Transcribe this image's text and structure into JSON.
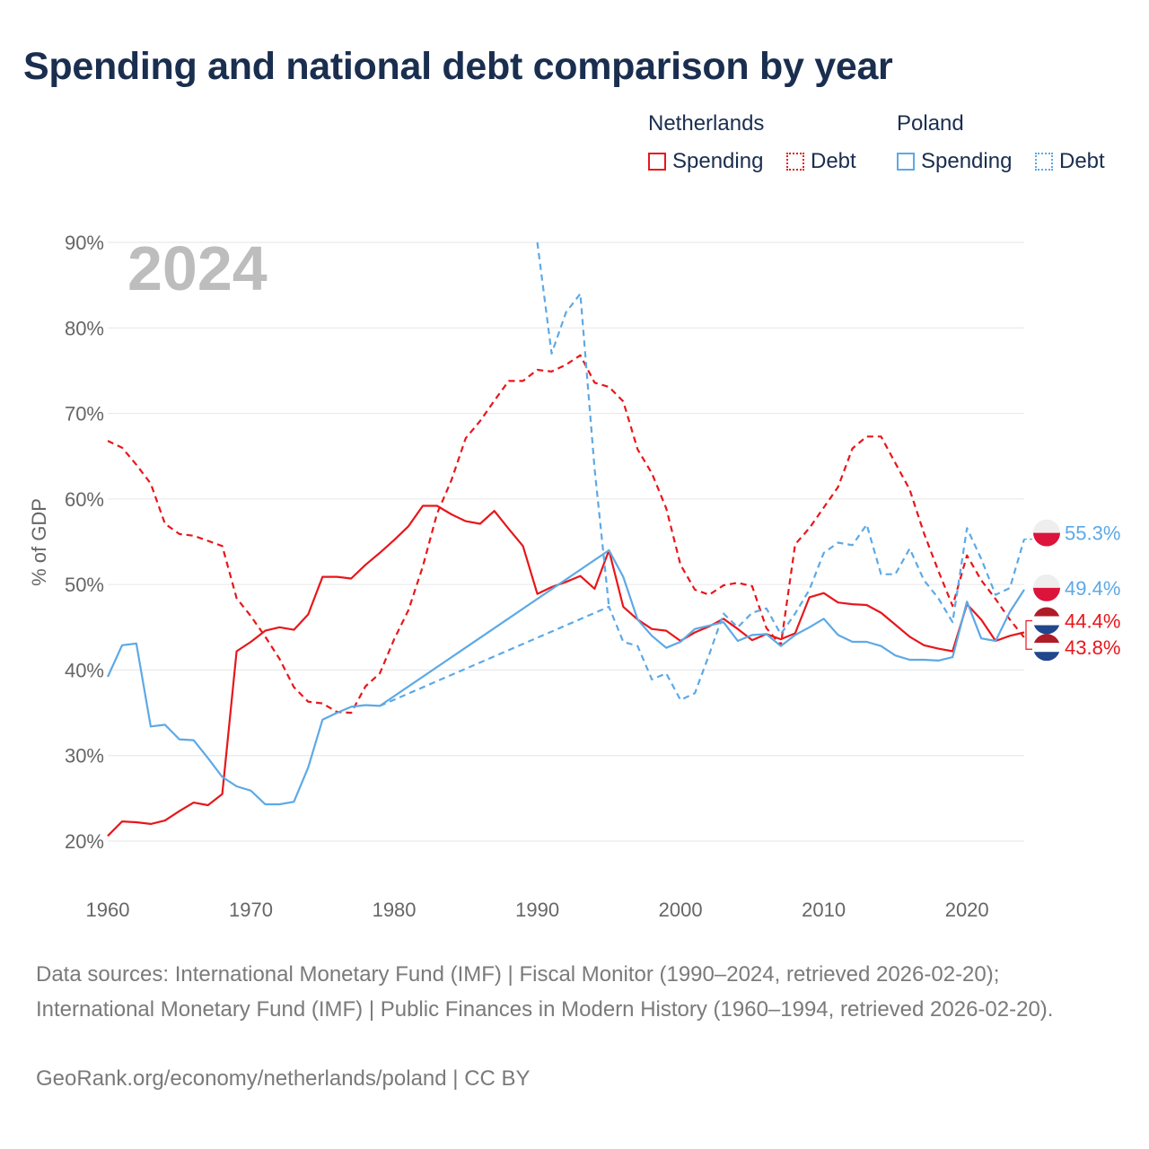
{
  "title": "Spending and national debt comparison by year",
  "legend": {
    "groups": [
      {
        "name": "Netherlands",
        "items": [
          {
            "label": "Spending",
            "style": "solid",
            "color": "#e8161b"
          },
          {
            "label": "Debt",
            "style": "dotted",
            "color": "#e8161b"
          }
        ]
      },
      {
        "name": "Poland",
        "items": [
          {
            "label": "Spending",
            "style": "solid",
            "color": "#5da9e6"
          },
          {
            "label": "Debt",
            "style": "dotted",
            "color": "#5da9e6"
          }
        ]
      }
    ]
  },
  "colors": {
    "netherlands": "#e8161b",
    "poland": "#5da9e6",
    "grid": "#e6e6e6",
    "title": "#1a2e4f"
  },
  "chart_data": {
    "type": "line",
    "year_label": "2024",
    "ylabel": "% of GDP",
    "xlabel": "",
    "xlim": [
      1960,
      2024
    ],
    "ylim": [
      20,
      90
    ],
    "x_ticks": [
      {
        "value": 1960,
        "label": "1960"
      },
      {
        "value": 1970,
        "label": "1970"
      },
      {
        "value": 1980,
        "label": "1980"
      },
      {
        "value": 1990,
        "label": "1990"
      },
      {
        "value": 2000,
        "label": "2000"
      },
      {
        "value": 2010,
        "label": "2010"
      },
      {
        "value": 2020,
        "label": "2020"
      }
    ],
    "y_ticks": [
      {
        "value": 20,
        "label": "20%"
      },
      {
        "value": 30,
        "label": "30%"
      },
      {
        "value": 40,
        "label": "40%"
      },
      {
        "value": 50,
        "label": "50%"
      },
      {
        "value": 60,
        "label": "60%"
      },
      {
        "value": 70,
        "label": "70%"
      },
      {
        "value": 80,
        "label": "80%"
      },
      {
        "value": 90,
        "label": "90%"
      }
    ],
    "series": [
      {
        "name": "Netherlands Debt",
        "country": "Netherlands",
        "measure": "Debt",
        "color": "#e8161b",
        "dashed": true,
        "x": [
          1960,
          1961,
          1962,
          1963,
          1964,
          1965,
          1966,
          1967,
          1968,
          1969,
          1970,
          1971,
          1972,
          1973,
          1974,
          1975,
          1976,
          1977,
          1978,
          1979,
          1980,
          1981,
          1982,
          1983,
          1984,
          1985,
          1986,
          1987,
          1988,
          1989,
          1990,
          1991,
          1992,
          1993,
          1994,
          1995,
          1996,
          1997,
          1998,
          1999,
          2000,
          2001,
          2002,
          2003,
          2004,
          2005,
          2006,
          2007,
          2008,
          2009,
          2010,
          2011,
          2012,
          2013,
          2014,
          2015,
          2016,
          2017,
          2018,
          2019,
          2020,
          2021,
          2022,
          2023,
          2024
        ],
        "y": [
          66.8,
          66.0,
          64.0,
          61.8,
          57.1,
          55.9,
          55.7,
          55.1,
          54.5,
          48.4,
          46.3,
          43.9,
          41.3,
          38.0,
          36.3,
          36.1,
          35.1,
          35.0,
          38.1,
          39.6,
          43.6,
          47.0,
          52.1,
          58.3,
          62.2,
          67.1,
          69.1,
          71.5,
          73.8,
          73.8,
          75.1,
          74.9,
          75.7,
          76.8,
          73.6,
          73.1,
          71.4,
          65.8,
          63.0,
          58.9,
          52.3,
          49.4,
          48.8,
          49.9,
          50.2,
          49.8,
          44.9,
          42.9,
          54.7,
          56.6,
          59.0,
          61.4,
          65.9,
          67.3,
          67.3,
          64.2,
          61.1,
          56.0,
          51.6,
          47.5,
          53.4,
          50.5,
          48.3,
          45.9,
          43.8
        ]
      },
      {
        "name": "Netherlands Spending",
        "country": "Netherlands",
        "measure": "Spending",
        "color": "#e8161b",
        "dashed": false,
        "x": [
          1960,
          1961,
          1962,
          1963,
          1964,
          1965,
          1966,
          1967,
          1968,
          1969,
          1970,
          1971,
          1972,
          1973,
          1974,
          1975,
          1976,
          1977,
          1978,
          1979,
          1980,
          1981,
          1982,
          1983,
          1984,
          1985,
          1986,
          1987,
          1988,
          1989,
          1990,
          1991,
          1992,
          1993,
          1994,
          1995,
          1996,
          1997,
          1998,
          1999,
          2000,
          2001,
          2002,
          2003,
          2004,
          2005,
          2006,
          2007,
          2008,
          2009,
          2010,
          2011,
          2012,
          2013,
          2014,
          2015,
          2016,
          2017,
          2018,
          2019,
          2020,
          2021,
          2022,
          2023,
          2024
        ],
        "y": [
          20.6,
          22.3,
          22.2,
          22.0,
          22.4,
          23.5,
          24.5,
          24.2,
          25.5,
          42.2,
          43.3,
          44.6,
          45.0,
          44.7,
          46.5,
          50.9,
          50.9,
          50.7,
          52.3,
          53.7,
          55.2,
          56.8,
          59.2,
          59.2,
          58.2,
          57.4,
          57.1,
          58.6,
          56.5,
          54.5,
          48.9,
          49.7,
          50.3,
          51.0,
          49.5,
          54.0,
          47.4,
          45.9,
          44.8,
          44.6,
          43.4,
          44.4,
          45.1,
          46.0,
          44.8,
          43.5,
          44.2,
          43.6,
          44.3,
          48.5,
          49.0,
          47.9,
          47.7,
          47.6,
          46.7,
          45.3,
          43.9,
          42.9,
          42.5,
          42.2,
          47.7,
          45.9,
          43.4,
          44.0,
          44.4
        ]
      },
      {
        "name": "Poland Debt",
        "country": "Poland",
        "measure": "Debt",
        "color": "#5da9e6",
        "dashed": true,
        "x": [
          1979,
          1995,
          1996,
          1997,
          1998,
          1999,
          2000,
          2001,
          2002,
          2003,
          2004,
          2005,
          2006,
          2007,
          2008,
          2009,
          2010,
          2011,
          2012,
          2013,
          2014,
          2015,
          2016,
          2017,
          2018,
          2019,
          2020,
          2021,
          2022,
          2023,
          2024
        ],
        "y": [
          35.8,
          47.4,
          43.3,
          42.8,
          38.9,
          39.6,
          36.5,
          37.3,
          41.8,
          46.6,
          45.0,
          46.7,
          47.2,
          44.2,
          46.6,
          49.4,
          53.7,
          54.9,
          54.6,
          57.0,
          51.2,
          51.2,
          54.2,
          50.5,
          48.4,
          45.6,
          56.6,
          53.0,
          48.8,
          49.6,
          55.3
        ]
      },
      {
        "name": "Poland Debt 1990s",
        "country": "Poland",
        "measure": "Debt",
        "color": "#5da9e6",
        "dashed": true,
        "x": [
          1990,
          1991,
          1992,
          1993,
          1994,
          1995
        ],
        "y": [
          90.0,
          77.0,
          81.8,
          84.0,
          63.5,
          47.4
        ]
      },
      {
        "name": "Poland Spending",
        "country": "Poland",
        "measure": "Spending",
        "color": "#5da9e6",
        "dashed": false,
        "x": [
          1960,
          1961,
          1962,
          1963,
          1964,
          1965,
          1966,
          1967,
          1968,
          1969,
          1970,
          1971,
          1972,
          1973,
          1974,
          1975,
          1976,
          1977,
          1978,
          1979,
          1995,
          1996,
          1997,
          1998,
          1999,
          2000,
          2001,
          2002,
          2003,
          2004,
          2005,
          2006,
          2007,
          2008,
          2009,
          2010,
          2011,
          2012,
          2013,
          2014,
          2015,
          2016,
          2017,
          2018,
          2019,
          2020,
          2021,
          2022,
          2023,
          2024
        ],
        "y": [
          39.2,
          42.9,
          43.1,
          33.4,
          33.6,
          31.9,
          31.8,
          29.7,
          27.5,
          26.4,
          25.9,
          24.3,
          24.3,
          24.6,
          28.6,
          34.2,
          35.0,
          35.7,
          35.9,
          35.8,
          54.0,
          50.9,
          45.9,
          44.0,
          42.6,
          43.3,
          44.8,
          45.2,
          45.6,
          43.4,
          44.1,
          44.2,
          42.8,
          44.1,
          45.0,
          46.0,
          44.1,
          43.3,
          43.3,
          42.8,
          41.7,
          41.2,
          41.2,
          41.1,
          41.5,
          48.0,
          43.7,
          43.4,
          46.8,
          49.4
        ]
      }
    ],
    "end_labels": [
      {
        "text": "55.3%",
        "value": 55.3,
        "country": "Poland",
        "color": "#5da9e6"
      },
      {
        "text": "49.4%",
        "value": 49.4,
        "country": "Poland",
        "color": "#5da9e6"
      },
      {
        "text": "44.4%",
        "value": 44.4,
        "country": "Netherlands",
        "color": "#e8161b"
      },
      {
        "text": "43.8%",
        "value": 43.8,
        "country": "Netherlands",
        "color": "#e8161b"
      }
    ]
  },
  "footer": {
    "sources": "Data sources: International Monetary Fund (IMF) | Fiscal Monitor (1990–2024, retrieved 2026-02-20); International Monetary Fund (IMF) | Public Finances in Modern History (1960–1994, retrieved 2026-02-20).",
    "credit": "GeoRank.org/economy/netherlands/poland | CC BY"
  }
}
